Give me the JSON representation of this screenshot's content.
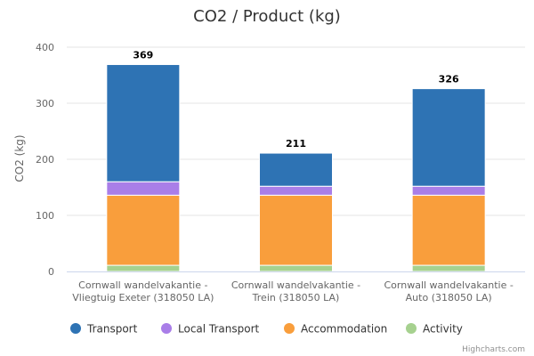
{
  "chart_data": {
    "type": "bar",
    "stacked": true,
    "title": "CO2  /  Product (kg)",
    "ylabel": "CO2 (kg)",
    "xlabel": "",
    "ylim": [
      0,
      400
    ],
    "yticks": [
      0,
      100,
      200,
      300,
      400
    ],
    "grid": true,
    "categories": [
      [
        "Cornwall wandelvakantie -",
        "Vliegtuig Exeter (318050 LA)"
      ],
      [
        "Cornwall wandelvakantie -",
        "Trein (318050 LA)"
      ],
      [
        "Cornwall wandelvakantie -",
        "Auto (318050 LA)"
      ]
    ],
    "series": [
      {
        "name": "Activity",
        "color": "#a6d18f",
        "values": [
          11,
          11,
          11
        ]
      },
      {
        "name": "Accommodation",
        "color": "#f99e3c",
        "values": [
          125,
          125,
          125
        ]
      },
      {
        "name": "Local Transport",
        "color": "#a97ee8",
        "values": [
          24,
          16,
          16
        ]
      },
      {
        "name": "Transport",
        "color": "#2e73b4",
        "values": [
          209,
          59,
          174
        ]
      }
    ],
    "totals": [
      369,
      211,
      326
    ],
    "legend_order": [
      "Transport",
      "Local Transport",
      "Accommodation",
      "Activity"
    ],
    "legend_position": "bottom",
    "credits": "Highcharts.com"
  }
}
